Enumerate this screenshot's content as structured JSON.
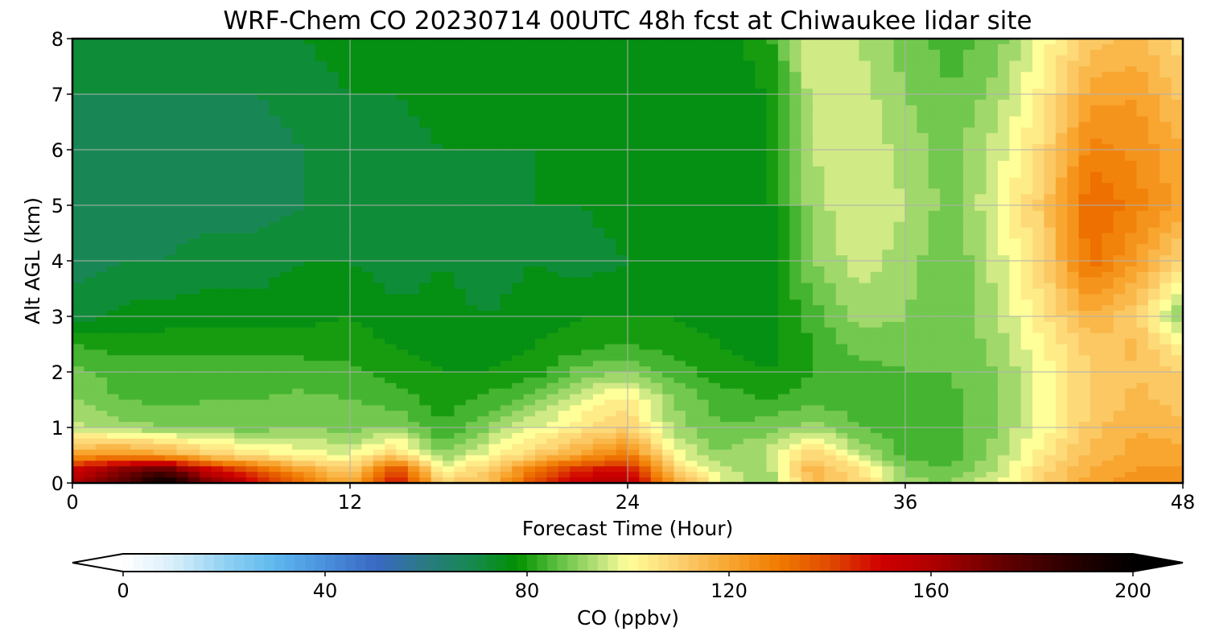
{
  "chart_data": {
    "type": "heatmap",
    "title": "WRF-Chem CO  20230714 00UTC 48h fcst at Chiwaukee lidar site",
    "xlabel": "Forecast Time (Hour)",
    "ylabel": "Alt AGL (km)",
    "xlim": [
      0,
      48
    ],
    "ylim": [
      0,
      8
    ],
    "x_ticks": [
      "0",
      "12",
      "24",
      "36",
      "48"
    ],
    "y_ticks": [
      "0",
      "1",
      "2",
      "3",
      "4",
      "5",
      "6",
      "7",
      "8"
    ],
    "grid": true,
    "x_hours": [
      0,
      2,
      4,
      6,
      8,
      10,
      12,
      14,
      16,
      18,
      20,
      22,
      24,
      26,
      28,
      30,
      32,
      34,
      36,
      38,
      40,
      42,
      44,
      46,
      48
    ],
    "z_km": [
      0,
      0.25,
      0.5,
      1,
      1.5,
      2,
      2.5,
      3,
      4,
      5,
      6,
      7,
      8
    ],
    "co_ppbv": [
      [
        160,
        175,
        200,
        170,
        150,
        130,
        120,
        150,
        110,
        115,
        140,
        155,
        160,
        120,
        100,
        88,
        115,
        110,
        92,
        90,
        98,
        110,
        120,
        125,
        125
      ],
      [
        150,
        165,
        175,
        150,
        135,
        120,
        110,
        140,
        100,
        110,
        130,
        145,
        150,
        110,
        95,
        92,
        118,
        105,
        88,
        86,
        95,
        108,
        118,
        122,
        122
      ],
      [
        120,
        125,
        120,
        110,
        105,
        100,
        98,
        110,
        90,
        100,
        110,
        120,
        130,
        100,
        90,
        95,
        110,
        95,
        85,
        84,
        92,
        105,
        115,
        120,
        120
      ],
      [
        95,
        92,
        90,
        88,
        88,
        90,
        88,
        90,
        82,
        90,
        98,
        105,
        110,
        92,
        86,
        88,
        92,
        86,
        83,
        84,
        90,
        100,
        112,
        118,
        115
      ],
      [
        90,
        86,
        85,
        86,
        86,
        87,
        86,
        84,
        80,
        83,
        88,
        98,
        104,
        90,
        84,
        82,
        84,
        84,
        84,
        85,
        90,
        100,
        110,
        115,
        112
      ],
      [
        88,
        84,
        84,
        84,
        84,
        84,
        83,
        80,
        78,
        78,
        80,
        88,
        90,
        84,
        80,
        78,
        82,
        84,
        86,
        86,
        90,
        100,
        110,
        114,
        110
      ],
      [
        82,
        80,
        80,
        80,
        80,
        80,
        80,
        78,
        76,
        76,
        78,
        80,
        82,
        80,
        78,
        76,
        82,
        88,
        88,
        86,
        92,
        102,
        112,
        115,
        100
      ],
      [
        72,
        75,
        76,
        76,
        76,
        77,
        78,
        75,
        75,
        74,
        76,
        78,
        78,
        78,
        76,
        76,
        84,
        92,
        90,
        86,
        94,
        105,
        118,
        110,
        88
      ],
      [
        68,
        70,
        70,
        72,
        72,
        74,
        74,
        72,
        74,
        72,
        74,
        72,
        74,
        76,
        76,
        76,
        90,
        96,
        92,
        86,
        96,
        110,
        132,
        122,
        108
      ],
      [
        66,
        68,
        68,
        68,
        68,
        70,
        72,
        70,
        74,
        72,
        74,
        74,
        76,
        76,
        76,
        76,
        92,
        98,
        94,
        88,
        98,
        112,
        134,
        128,
        120
      ],
      [
        68,
        68,
        68,
        68,
        68,
        70,
        72,
        72,
        74,
        74,
        74,
        74,
        76,
        76,
        76,
        76,
        94,
        98,
        92,
        88,
        96,
        108,
        128,
        125,
        118
      ],
      [
        70,
        70,
        70,
        70,
        70,
        72,
        74,
        74,
        76,
        76,
        76,
        76,
        76,
        76,
        76,
        78,
        96,
        96,
        90,
        86,
        92,
        104,
        120,
        122,
        112
      ],
      [
        72,
        72,
        72,
        72,
        74,
        74,
        76,
        76,
        76,
        78,
        78,
        78,
        78,
        76,
        76,
        80,
        98,
        94,
        88,
        84,
        88,
        100,
        112,
        115,
        108
      ]
    ],
    "colorbar": {
      "label": "CO  (ppbv)",
      "min": 0,
      "max": 200,
      "ticks": [
        "0",
        "40",
        "80",
        "120",
        "160",
        "200"
      ],
      "extend": "both",
      "colors": [
        {
          "v": 0,
          "c": "#ffffff"
        },
        {
          "v": 10,
          "c": "#d8eefa"
        },
        {
          "v": 20,
          "c": "#92d2f2"
        },
        {
          "v": 30,
          "c": "#5eb8ee"
        },
        {
          "v": 40,
          "c": "#4a90dc"
        },
        {
          "v": 50,
          "c": "#3a68c4"
        },
        {
          "v": 60,
          "c": "#2a7a82"
        },
        {
          "v": 70,
          "c": "#148a4a"
        },
        {
          "v": 78,
          "c": "#009000"
        },
        {
          "v": 86,
          "c": "#5cc040"
        },
        {
          "v": 94,
          "c": "#b8e07a"
        },
        {
          "v": 100,
          "c": "#ffff9a"
        },
        {
          "v": 110,
          "c": "#fcd070"
        },
        {
          "v": 120,
          "c": "#f8a630"
        },
        {
          "v": 130,
          "c": "#f07a00"
        },
        {
          "v": 140,
          "c": "#e04a00"
        },
        {
          "v": 150,
          "c": "#d00000"
        },
        {
          "v": 160,
          "c": "#b00000"
        },
        {
          "v": 175,
          "c": "#600000"
        },
        {
          "v": 190,
          "c": "#200000"
        },
        {
          "v": 200,
          "c": "#000000"
        }
      ]
    }
  }
}
